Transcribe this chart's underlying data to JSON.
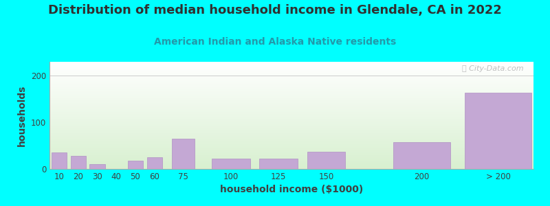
{
  "title": "Distribution of median household income in Glendale, CA in 2022",
  "subtitle": "American Indian and Alaska Native residents",
  "xlabel": "household income ($1000)",
  "ylabel": "households",
  "background_color": "#00FFFF",
  "bar_color": "#c4a8d4",
  "bar_edge_color": "#b090c4",
  "categories": [
    "10",
    "20",
    "30",
    "40",
    "50",
    "60",
    "75",
    "100",
    "125",
    "150",
    "200",
    "> 200"
  ],
  "values": [
    35,
    28,
    10,
    0,
    17,
    25,
    65,
    22,
    22,
    37,
    58,
    163
  ],
  "x_positions": [
    10,
    20,
    30,
    40,
    50,
    60,
    75,
    100,
    125,
    150,
    200,
    240
  ],
  "bar_widths": [
    8,
    8,
    8,
    8,
    8,
    8,
    12,
    20,
    20,
    20,
    30,
    35
  ],
  "ylim": [
    0,
    230
  ],
  "yticks": [
    0,
    100,
    200
  ],
  "watermark": "Ⓜ City-Data.com",
  "title_fontsize": 13,
  "subtitle_fontsize": 10,
  "axis_label_fontsize": 10,
  "tick_fontsize": 8.5
}
